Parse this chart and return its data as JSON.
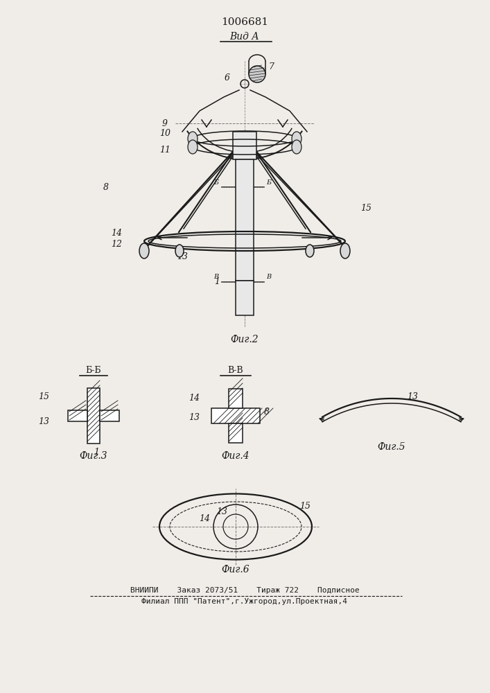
{
  "patent_number": "1006681",
  "view_a_label": "Вид А",
  "fig2_label": "Фиг.2",
  "fig3_label": "Фиг.3",
  "fig4_label": "Фиг.4",
  "fig5_label": "Фиг.5",
  "fig6_label": "Фиг.6",
  "section_bb": "Б-Б",
  "section_vv": "В-В",
  "footer1": "ВНИИПИ    Заказ 2073/51    Тираж 722    Подписное",
  "footer2": "Филиал ППП \"Патент\",г.Ужгород,ул.Проектная,4",
  "bg_color": "#f0ede8",
  "line_color": "#1a1a1a"
}
